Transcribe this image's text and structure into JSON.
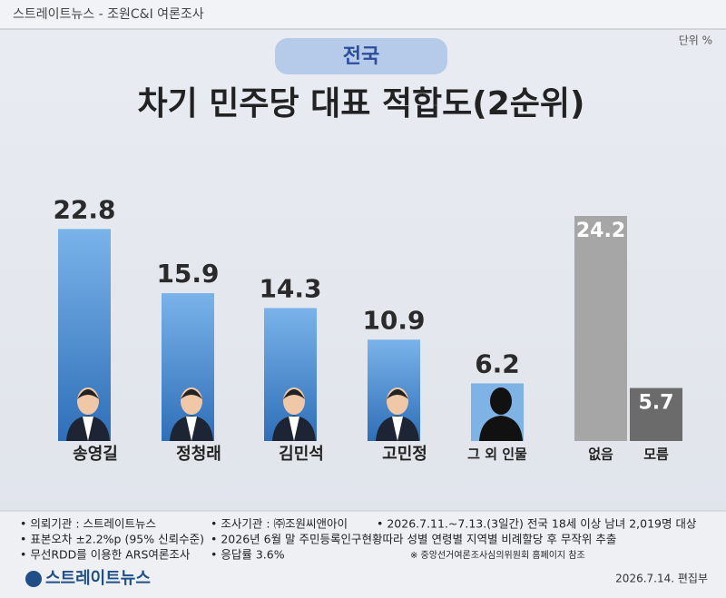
{
  "header": {
    "source": "스트레이트뉴스 - 조원C&I 여론조사",
    "region": "전국",
    "unit": "단위 %"
  },
  "chart_data": {
    "type": "bar",
    "title": "차기 민주당 대표 적합도(2순위)",
    "categories": [
      "송영길",
      "정청래",
      "김민석",
      "고민정",
      "그 외 인물",
      "없음",
      "모름"
    ],
    "values": [
      22.8,
      15.9,
      14.3,
      10.9,
      6.2,
      24.2,
      5.7
    ],
    "colors": [
      "#3f86d0",
      "#3f86d0",
      "#3f86d0",
      "#3f86d0",
      "#7fb2e5",
      "#a6a6a6",
      "#6b6b6b"
    ]
  },
  "footer": {
    "notes": [
      [
        "• 의뢰기관 : 스트레이트뉴스",
        "• 조사기관 : ㈜조원씨앤아이",
        "• 2026.7.11.~7.13.(3일간) 전국 18세 이상 남녀 2,019명 대상"
      ],
      [
        "• 표본오차 ±2.2%p (95% 신뢰수준)",
        "• 2026년 6월 말 주민등록인구현황따라 성별 연령별 지역별 비례할당 후 무작위 추출"
      ],
      [
        "• 무선RDD를 이용한 ARS여론조사",
        "• 응답률 3.6%",
        "※ 중앙선거여론조사심의위원회 홈페이지 참조"
      ]
    ],
    "logo": "스트레이트뉴스",
    "date": "2026.7.14.  편집부"
  }
}
